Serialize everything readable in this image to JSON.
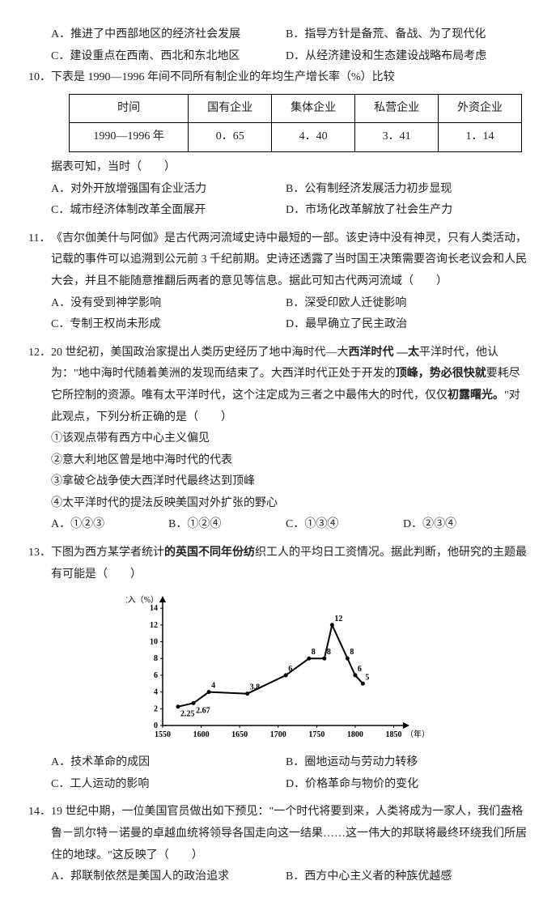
{
  "q9opts": {
    "a": "A．推进了中西部地区的经济社会发展",
    "b": "B．指导方针是备荒、备战、为了现代化",
    "c": "C．建设重点在西南、西北和东北地区",
    "d": "D．从经济建设和生态建设战略布局考虑"
  },
  "q10": {
    "num": "10．",
    "stem": "下表是 1990—1996 年间不同所有制企业的年均生产增长率（%）比较",
    "table": {
      "columns": [
        "时间",
        "国有企业",
        "集体企业",
        "私营企业",
        "外资企业"
      ],
      "row": [
        "1990—1996 年",
        "0．65",
        "4．40",
        "3．41",
        "1．14"
      ]
    },
    "tail": "据表可知，当时（　　）",
    "a": "A．对外开放增强国有企业活力",
    "b": "B．公有制经济发展活力初步显现",
    "c": "C．城市经济体制改革全面展开",
    "d": "D．市场化改革解放了社会生产力"
  },
  "q11": {
    "num": "11．",
    "stem": "《吉尔伽美什与阿伽》是古代两河流域史诗中最短的一部。该史诗中没有神灵，只有人类活动，记载的事件可以追溯到公元前 3 千纪前期。史诗还透露了当时国王决策需要咨询长老议会和人民大会，并且不能随意推翻后两者的意见等信息。据此可知古代两河流域（　　）",
    "a": "A．没有受到神学影响",
    "b": "B．深受印欧人迁徙影响",
    "c": "C．专制王权尚未形成",
    "d": "D．最早确立了民主政治"
  },
  "q12": {
    "num": "12．",
    "stem1": "20 世纪初，美国政治家提出人类历史经历了地中海时代—大",
    "stem1b": "西洋时代 —太",
    "stem1c": "平洋时代，他认为：\"地中海时代随着美洲的发现而结束了。大西洋时代正处于开发的",
    "stem1d": "顶峰，势必很快就",
    "stem1e": "要耗尽它所控制的资源。唯有太平洋时代，这个注定成为三者之中最伟大的时代，仅仅",
    "stem1f": "初露曙光。",
    "stem1g": "\"对此观点，下列分析正确的是（　　）",
    "o1": "①该观点带有西方中心主义偏见",
    "o2": "②意大利地区曾是地中海时代的代表",
    "o3": "③拿破仑战争使大西洋时代最终达到顶峰",
    "o4": "④太平洋时代的提法反映美国对外扩张的野心",
    "a": "A．①②③",
    "b": "B．①②④",
    "c": "C．①③④",
    "d": "D．②③④"
  },
  "q13": {
    "num": "13．",
    "stem1": "下图为西方某学者统计",
    "stem1b": "的英国不同年份纺",
    "stem1c": "织工人的平均日工资情况。据此判断，他研究的主题最有可能是（　　）",
    "chart": {
      "type": "line",
      "ylabel": "收入（%）",
      "xlabel": "（年）",
      "xmin": 1550,
      "xmax": 1860,
      "ymin": 0,
      "ymax": 14.5,
      "ytick_step": 2,
      "xticks": [
        1550,
        1600,
        1650,
        1700,
        1750,
        1800,
        1850
      ],
      "points": [
        [
          1570,
          2.25
        ],
        [
          1590,
          2.67
        ],
        [
          1610,
          4
        ],
        [
          1660,
          3.8
        ],
        [
          1710,
          6
        ],
        [
          1740,
          8
        ],
        [
          1760,
          8
        ],
        [
          1770,
          12
        ],
        [
          1790,
          8
        ],
        [
          1800,
          6
        ],
        [
          1810,
          5
        ]
      ],
      "labels": [
        "2.25",
        "2.67",
        "4",
        "3.8",
        "6",
        "8",
        "8",
        "12",
        "8",
        "6",
        "5"
      ],
      "line_color": "#000",
      "marker": "circle",
      "marker_fill": "#000",
      "grid": false,
      "axis_color": "#000",
      "font_size": 10
    },
    "a": "A．技术革命的成因",
    "b": "B．圈地运动与劳动力转移",
    "c": "C．工人运动的影响",
    "d": "D．价格革命与物价的变化"
  },
  "q14": {
    "num": "14．",
    "stem": "19 世纪中期，一位美国官员做出如下预见：\"一个时代将要到来，人类将成为一家人，我们盎格鲁－凯尔特－诺曼的卓越血统将领导各国走向这一结果……这一伟大的邦联将最终环绕我们所居住的地球。\"这反映了（　　）",
    "a": "A．邦联制依然是美国人的政治追求",
    "b": "B．西方中心主义者的种族优越感"
  }
}
